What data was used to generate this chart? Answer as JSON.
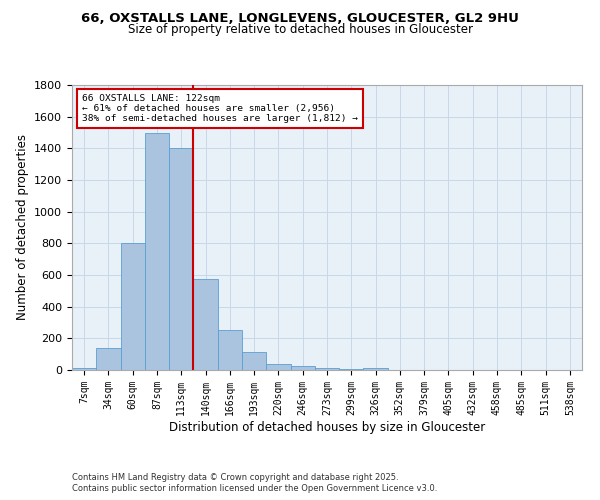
{
  "title_line1": "66, OXSTALLS LANE, LONGLEVENS, GLOUCESTER, GL2 9HU",
  "title_line2": "Size of property relative to detached houses in Gloucester",
  "xlabel": "Distribution of detached houses by size in Gloucester",
  "ylabel": "Number of detached properties",
  "bar_labels": [
    "7sqm",
    "34sqm",
    "60sqm",
    "87sqm",
    "113sqm",
    "140sqm",
    "166sqm",
    "193sqm",
    "220sqm",
    "246sqm",
    "273sqm",
    "299sqm",
    "326sqm",
    "352sqm",
    "379sqm",
    "405sqm",
    "432sqm",
    "458sqm",
    "485sqm",
    "511sqm",
    "538sqm"
  ],
  "bar_values": [
    10,
    140,
    800,
    1500,
    1400,
    575,
    250,
    115,
    40,
    28,
    15,
    5,
    14,
    2,
    2,
    2,
    0,
    2,
    0,
    0,
    0
  ],
  "bar_color": "#aac4e0",
  "bar_edgecolor": "#5a9fd4",
  "red_line_x": 4.5,
  "red_line_color": "#cc0000",
  "ylim": [
    0,
    1800
  ],
  "yticks": [
    0,
    200,
    400,
    600,
    800,
    1000,
    1200,
    1400,
    1600,
    1800
  ],
  "annotation_title": "66 OXSTALLS LANE: 122sqm",
  "annotation_line1": "← 61% of detached houses are smaller (2,956)",
  "annotation_line2": "38% of semi-detached houses are larger (1,812) →",
  "annotation_box_color": "#ffffff",
  "annotation_box_edgecolor": "#cc0000",
  "footnote1": "Contains HM Land Registry data © Crown copyright and database right 2025.",
  "footnote2": "Contains public sector information licensed under the Open Government Licence v3.0.",
  "background_color": "#e8f0f8",
  "grid_color": "#c8d8e8",
  "fig_background": "#ffffff"
}
